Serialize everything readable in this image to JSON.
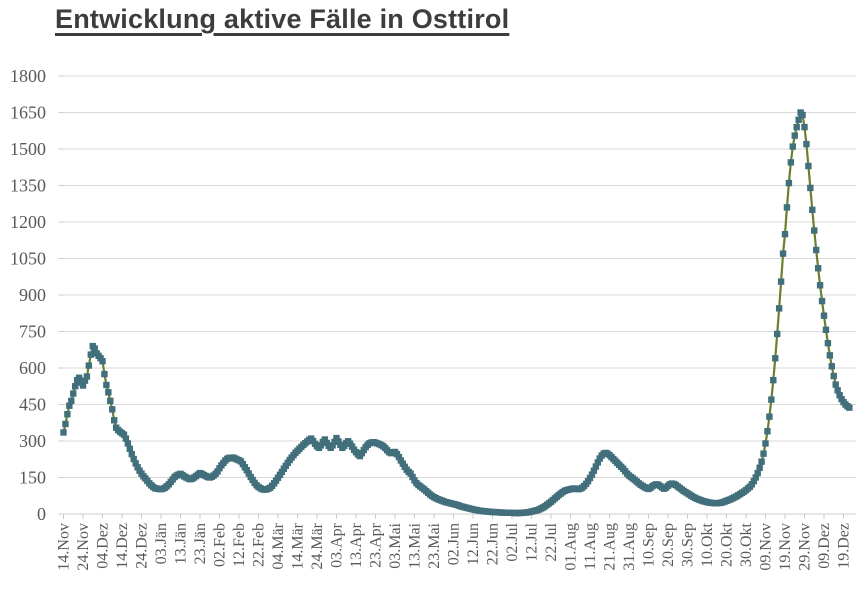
{
  "title": "Entwicklung aktive Fälle in Osttirol",
  "colors": {
    "title": "#3d3d3d",
    "tick_label": "#595959",
    "gridline": "#d9d9d9",
    "axis_line": "#cccccc",
    "series_line": "#68802f",
    "marker": "#426f7c"
  },
  "chart_data": {
    "type": "line",
    "title": "Entwicklung aktive Fälle in Osttirol",
    "legend": "none",
    "grid": "horizontal",
    "marker_shape": "square",
    "ylim": [
      0,
      1800
    ],
    "y_ticks": [
      0,
      150,
      300,
      450,
      600,
      750,
      900,
      1050,
      1200,
      1350,
      1500,
      1650,
      1800
    ],
    "x_tick_labels": [
      "14.Nov",
      "24.Nov",
      "04.Dez",
      "14.Dez",
      "24.Dez",
      "03.Jän",
      "13.Jän",
      "23.Jän",
      "02.Feb",
      "12.Feb",
      "22.Feb",
      "04.Mär",
      "14.Mär",
      "24.Mär",
      "03.Apr",
      "13.Apr",
      "23.Apr",
      "03.Mai",
      "13.Mai",
      "23.Mai",
      "02.Jun",
      "12.Jun",
      "22.Jun",
      "02.Jul",
      "12.Jul",
      "22.Jul",
      "01.Aug",
      "11.Aug",
      "21.Aug",
      "31.Aug",
      "10.Sep",
      "20.Sep",
      "30.Sep",
      "10.Okt",
      "20.Okt",
      "30.Okt",
      "09.Nov",
      "19.Nov",
      "29.Nov",
      "09.Dez",
      "19.Dez"
    ],
    "days_per_x_tick": 10,
    "values": [
      335,
      370,
      410,
      445,
      465,
      495,
      525,
      550,
      560,
      540,
      528,
      548,
      565,
      610,
      655,
      690,
      680,
      660,
      650,
      640,
      628,
      575,
      530,
      500,
      465,
      430,
      385,
      355,
      345,
      338,
      332,
      326,
      310,
      290,
      268,
      246,
      226,
      208,
      192,
      178,
      166,
      155,
      146,
      136,
      126,
      118,
      111,
      106,
      104,
      103,
      102,
      104,
      108,
      114,
      122,
      132,
      142,
      152,
      158,
      162,
      165,
      160,
      154,
      150,
      146,
      143,
      145,
      150,
      156,
      162,
      168,
      165,
      160,
      156,
      152,
      150,
      153,
      158,
      165,
      175,
      188,
      200,
      210,
      220,
      227,
      231,
      229,
      232,
      228,
      224,
      221,
      216,
      205,
      192,
      180,
      166,
      152,
      140,
      128,
      118,
      111,
      106,
      102,
      100,
      101,
      104,
      108,
      116,
      126,
      137,
      149,
      161,
      173,
      186,
      198,
      210,
      222,
      232,
      242,
      252,
      260,
      268,
      276,
      284,
      291,
      298,
      305,
      310,
      300,
      288,
      278,
      272,
      282,
      296,
      306,
      292,
      280,
      272,
      282,
      296,
      312,
      298,
      284,
      272,
      280,
      292,
      299,
      289,
      277,
      264,
      254,
      245,
      238,
      250,
      263,
      275,
      284,
      291,
      294,
      295,
      293,
      290,
      287,
      283,
      278,
      271,
      262,
      254,
      250,
      253,
      255,
      246,
      234,
      220,
      207,
      194,
      182,
      173,
      166,
      152,
      138,
      127,
      119,
      113,
      107,
      101,
      94,
      87,
      80,
      74,
      69,
      65,
      61,
      58,
      55,
      52,
      49,
      47,
      45,
      43,
      41,
      39,
      37,
      34,
      31,
      29,
      27,
      25,
      23,
      21,
      19,
      17,
      16,
      14,
      13,
      12,
      11,
      10,
      10,
      9,
      8,
      8,
      7,
      7,
      6,
      6,
      5,
      5,
      5,
      5,
      5,
      4,
      4,
      4,
      4,
      5,
      5,
      6,
      7,
      8,
      10,
      12,
      14,
      16,
      19,
      23,
      27,
      32,
      38,
      44,
      50,
      57,
      64,
      71,
      78,
      84,
      90,
      95,
      98,
      100,
      102,
      104,
      105,
      103,
      102,
      104,
      108,
      115,
      124,
      135,
      148,
      162,
      178,
      195,
      212,
      228,
      240,
      248,
      251,
      248,
      242,
      234,
      226,
      218,
      210,
      202,
      194,
      186,
      176,
      166,
      158,
      152,
      146,
      140,
      133,
      126,
      120,
      115,
      110,
      106,
      103,
      108,
      114,
      119,
      122,
      120,
      115,
      109,
      104,
      108,
      116,
      122,
      125,
      123,
      119,
      113,
      107,
      101,
      95,
      90,
      85,
      80,
      75,
      70,
      66,
      62,
      59,
      56,
      53,
      51,
      49,
      47,
      46,
      45,
      44,
      44,
      45,
      46,
      48,
      51,
      54,
      57,
      60,
      64,
      68,
      72,
      77,
      82,
      87,
      92,
      98,
      105,
      112,
      122,
      135,
      150,
      168,
      190,
      215,
      248,
      290,
      340,
      400,
      470,
      550,
      640,
      740,
      845,
      955,
      1070,
      1150,
      1260,
      1360,
      1445,
      1510,
      1555,
      1590,
      1620,
      1650,
      1640,
      1590,
      1520,
      1430,
      1340,
      1250,
      1165,
      1085,
      1010,
      940,
      875,
      815,
      757,
      702,
      652,
      607,
      567,
      532,
      508,
      488,
      472,
      460,
      450,
      443,
      437
    ]
  }
}
